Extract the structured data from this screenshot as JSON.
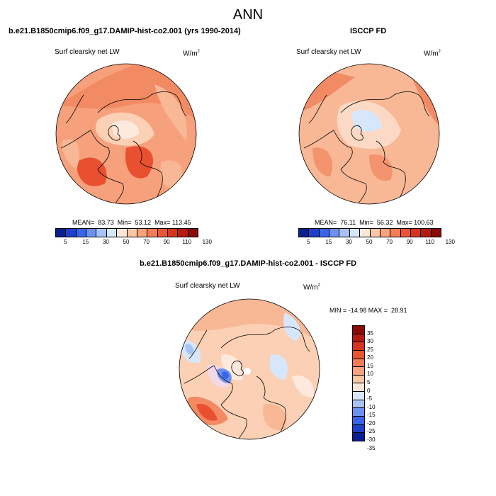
{
  "figure": {
    "title": "ANN",
    "panels": [
      {
        "case_title": "b.e21.B1850cmip6.f09_g17.DAMIP-hist-co2.001 (yrs 1990-2014)",
        "variable": "Surf clearsky net LW",
        "units": "W/m",
        "units_sup": "2",
        "stats": "MEAN=  83.73  Min=  53.12  Max= 113.45"
      },
      {
        "case_title": "ISCCP FD",
        "variable": "Surf clearsky net LW",
        "units": "W/m",
        "units_sup": "2",
        "stats": "MEAN=  76.11  Min=  56.32  Max= 100.63"
      },
      {
        "case_title": "b.e21.B1850cmip6.f09_g17.DAMIP-hist-co2.001 - ISCCP FD",
        "variable": "Surf clearsky net LW",
        "units": "W/m",
        "units_sup": "2",
        "stats": "MIN = -14.98 MAX =  28.91"
      }
    ],
    "abs_colorbar": {
      "labels": [
        "5",
        "15",
        "30",
        "50",
        "70",
        "90",
        "110",
        "130"
      ],
      "colors": [
        "#0a1f8f",
        "#1d3fc9",
        "#3a64e8",
        "#6d91f0",
        "#a7c3f6",
        "#d7e7fb",
        "#fbe6d8",
        "#fbc6a4",
        "#f8a37c",
        "#f47d57",
        "#ea5533",
        "#d63320",
        "#b51a12",
        "#8a0a06"
      ]
    },
    "diff_colorbar": {
      "labels": [
        "35",
        "30",
        "25",
        "20",
        "15",
        "10",
        "5",
        "0",
        "-5",
        "-10",
        "-15",
        "-20",
        "-25",
        "-30",
        "-35"
      ],
      "colors": [
        "#8a0a06",
        "#b51a12",
        "#d63320",
        "#ea5533",
        "#f47d57",
        "#f8a37c",
        "#fbc6a4",
        "#fbe6d8",
        "#d7e7fb",
        "#a7c3f6",
        "#6d91f0",
        "#3a64e8",
        "#1d3fc9",
        "#0a1f8f"
      ]
    },
    "projection": "north-polar-stereographic"
  }
}
